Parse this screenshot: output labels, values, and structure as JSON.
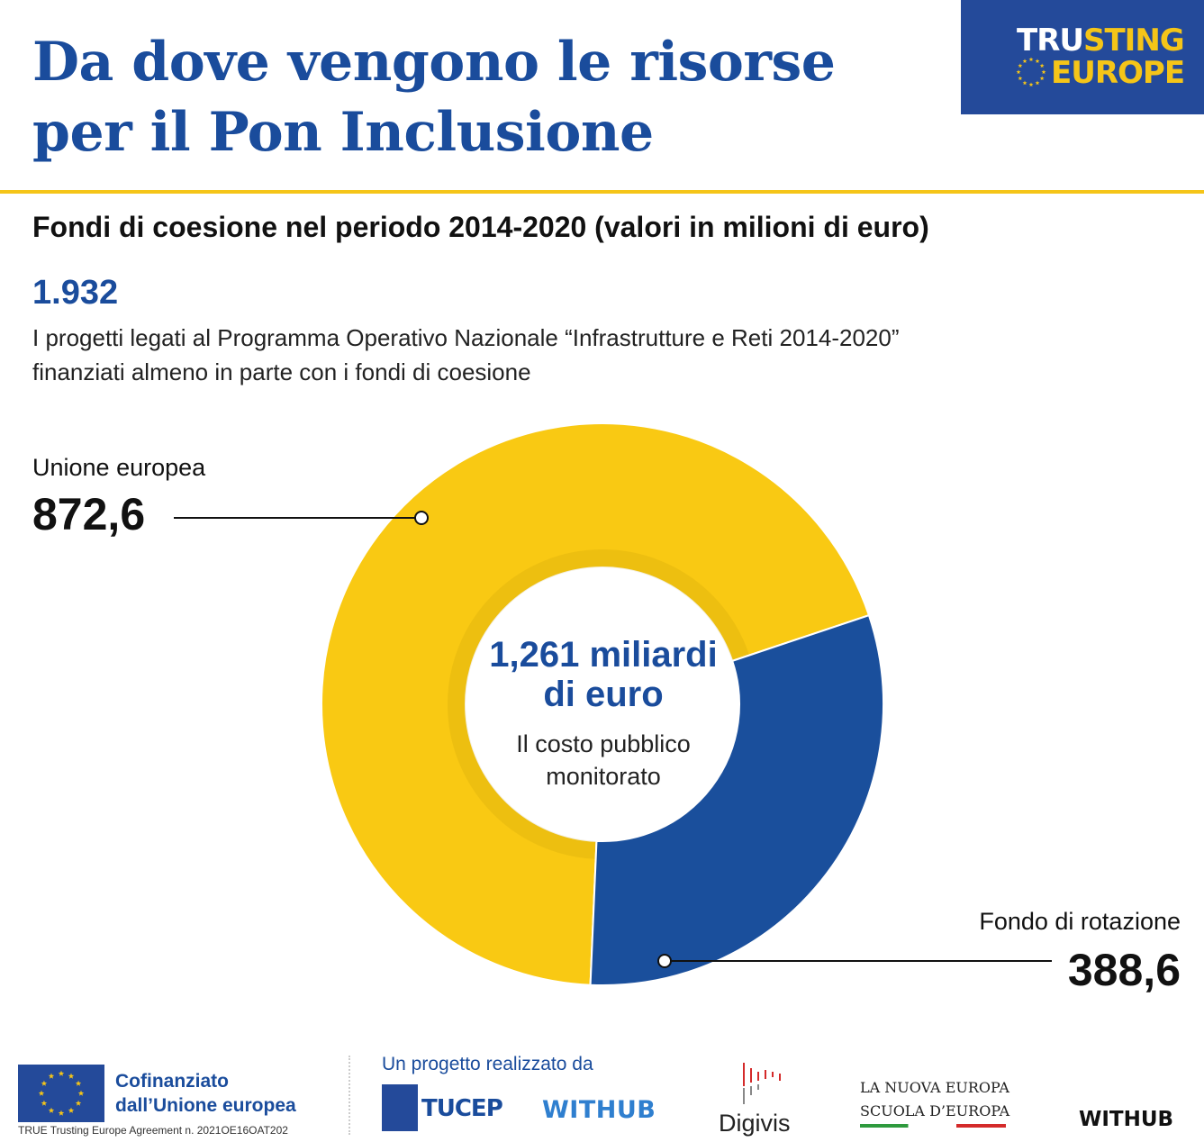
{
  "header": {
    "title_line1": "Da dove vengono le risorse",
    "title_line2": "per il Pon Inclusione",
    "brand_part1": "TRU",
    "brand_part2": "STING",
    "brand_line2": "EUROPE",
    "brand_color_blue": "#244a9a",
    "brand_color_yellow": "#f5c518"
  },
  "subtitle": "Fondi di coesione nel periodo 2014-2020 (valori in milioni di euro)",
  "stat": {
    "value": "1.932",
    "desc_line1": "I progetti legati al  Programma Operativo Nazionale “Infrastrutture e Reti 2014-2020”",
    "desc_line2": "finanziati almeno in parte con i fondi di coesione"
  },
  "chart_data": {
    "type": "pie",
    "title": "Fondi di coesione nel periodo 2014-2020 (valori in milioni di euro)",
    "categories": [
      "Unione europea",
      "Fondo di rotazione"
    ],
    "values": [
      872.6,
      388.6
    ],
    "value_labels": [
      "872,6",
      "388,6"
    ],
    "colors": [
      "#f9c913",
      "#1a4f9c"
    ],
    "center_value_line1": "1,261 miliardi",
    "center_value_line2": "di euro",
    "center_desc_line1": "Il costo pubblico",
    "center_desc_line2": "monitorato"
  },
  "footer": {
    "cofinanziato_line1": "Cofinanziato",
    "cofinanziato_line2": "dall’Unione europea",
    "agreement": "TRUE Trusting Europe Agreement n. 2021OE16OAT202",
    "realizzato": "Un progetto realizzato da",
    "logo_tucep": "TUCEP",
    "logo_withhub": "WITHUB",
    "logo_digivis": "Digivis",
    "logo_lne_line1": "LA NUOVA EUROPA",
    "logo_lne_line2": "SCUOLA D’EUROPA",
    "logo_withhub_dark": "WITHUB"
  }
}
